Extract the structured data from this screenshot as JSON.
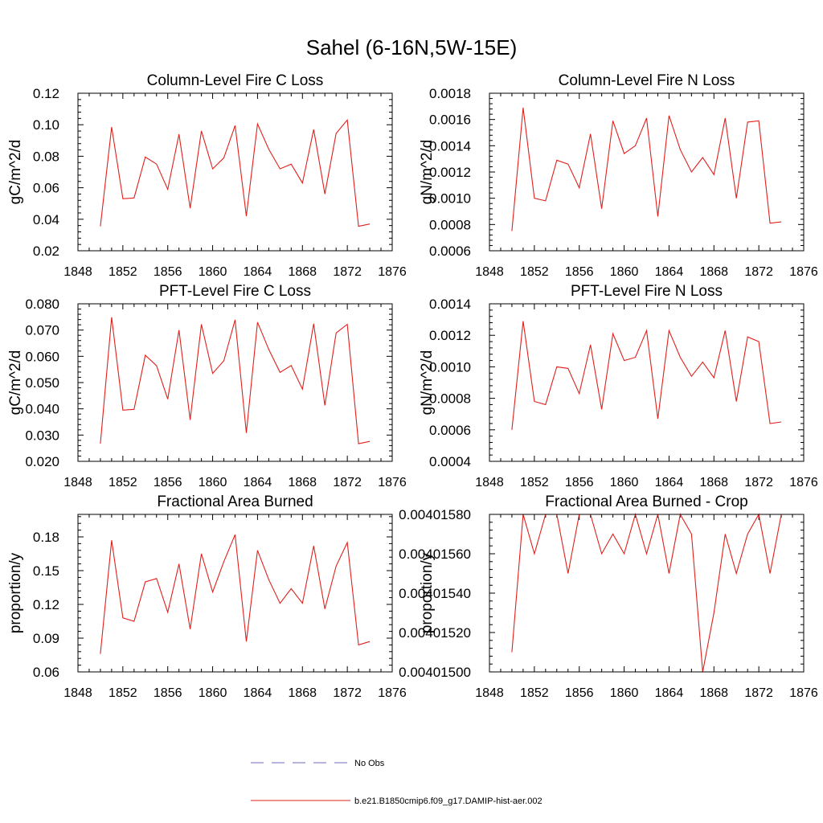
{
  "figure": {
    "title": "Sahel (6-16N,5W-15E)",
    "legend": [
      {
        "label": "No Obs",
        "style": "dashed",
        "color": "#6a6ab8"
      },
      {
        "label": "b.e21.B1850cmip6.f09_g17.DAMIP-hist-aer.002",
        "style": "solid",
        "color": "#e0201b"
      }
    ]
  },
  "chart_data": [
    {
      "type": "line",
      "title": "Column-Level Fire C Loss",
      "ylabel": "gC/m^2/d",
      "xlim": [
        1848,
        1876
      ],
      "ylim": [
        0.02,
        0.12
      ],
      "xticks": [
        "1848",
        "1852",
        "1856",
        "1860",
        "1864",
        "1868",
        "1872",
        "1876"
      ],
      "yticks": [
        "0.02",
        "0.04",
        "0.06",
        "0.08",
        "0.10",
        "0.12"
      ],
      "series": [
        {
          "color": "#e0201b",
          "x": [
            1850,
            1851,
            1852,
            1853,
            1854,
            1855,
            1856,
            1857,
            1858,
            1859,
            1860,
            1861,
            1862,
            1863,
            1864,
            1865,
            1866,
            1867,
            1868,
            1869,
            1870,
            1871,
            1872,
            1873,
            1874
          ],
          "values": [
            0.0355,
            0.0985,
            0.053,
            0.0535,
            0.0795,
            0.075,
            0.059,
            0.094,
            0.047,
            0.096,
            0.072,
            0.079,
            0.0995,
            0.042,
            0.1005,
            0.0845,
            0.072,
            0.075,
            0.063,
            0.097,
            0.056,
            0.0945,
            0.103,
            0.0355,
            0.037
          ]
        }
      ]
    },
    {
      "type": "line",
      "title": "Column-Level Fire N Loss",
      "ylabel": "gN/m^2/d",
      "xlim": [
        1848,
        1876
      ],
      "ylim": [
        0.0006,
        0.0018
      ],
      "xticks": [
        "1848",
        "1852",
        "1856",
        "1860",
        "1864",
        "1868",
        "1872",
        "1876"
      ],
      "yticks": [
        "0.0006",
        "0.0008",
        "0.0010",
        "0.0012",
        "0.0014",
        "0.0016",
        "0.0018"
      ],
      "series": [
        {
          "color": "#e0201b",
          "x": [
            1850,
            1851,
            1852,
            1853,
            1854,
            1855,
            1856,
            1857,
            1858,
            1859,
            1860,
            1861,
            1862,
            1863,
            1864,
            1865,
            1866,
            1867,
            1868,
            1869,
            1870,
            1871,
            1872,
            1873,
            1874
          ],
          "values": [
            0.00075,
            0.00169,
            0.001,
            0.00098,
            0.00129,
            0.00126,
            0.00108,
            0.00149,
            0.00092,
            0.00159,
            0.00134,
            0.0014,
            0.00161,
            0.00086,
            0.00163,
            0.00137,
            0.0012,
            0.00131,
            0.00118,
            0.00161,
            0.001,
            0.00158,
            0.00159,
            0.00081,
            0.00082
          ]
        }
      ]
    },
    {
      "type": "line",
      "title": "PFT-Level Fire C Loss",
      "ylabel": "gC/m^2/d",
      "xlim": [
        1848,
        1876
      ],
      "ylim": [
        0.02,
        0.08
      ],
      "xticks": [
        "1848",
        "1852",
        "1856",
        "1860",
        "1864",
        "1868",
        "1872",
        "1876"
      ],
      "yticks": [
        "0.020",
        "0.030",
        "0.040",
        "0.050",
        "0.060",
        "0.070",
        "0.080"
      ],
      "series": [
        {
          "color": "#e0201b",
          "x": [
            1850,
            1851,
            1852,
            1853,
            1854,
            1855,
            1856,
            1857,
            1858,
            1859,
            1860,
            1861,
            1862,
            1863,
            1864,
            1865,
            1866,
            1867,
            1868,
            1869,
            1870,
            1871,
            1872,
            1873,
            1874
          ],
          "values": [
            0.0267,
            0.0749,
            0.0395,
            0.0398,
            0.0604,
            0.0564,
            0.0437,
            0.07,
            0.0358,
            0.0722,
            0.0535,
            0.0583,
            0.0739,
            0.0308,
            0.073,
            0.0626,
            0.0539,
            0.0565,
            0.0475,
            0.0724,
            0.0413,
            0.0689,
            0.0722,
            0.0267,
            0.0276
          ]
        }
      ]
    },
    {
      "type": "line",
      "title": "PFT-Level Fire N Loss",
      "ylabel": "gN/m^2/d",
      "xlim": [
        1848,
        1876
      ],
      "ylim": [
        0.0004,
        0.0014
      ],
      "xticks": [
        "1848",
        "1852",
        "1856",
        "1860",
        "1864",
        "1868",
        "1872",
        "1876"
      ],
      "yticks": [
        "0.0004",
        "0.0006",
        "0.0008",
        "0.0010",
        "0.0012",
        "0.0014"
      ],
      "series": [
        {
          "color": "#e0201b",
          "x": [
            1850,
            1851,
            1852,
            1853,
            1854,
            1855,
            1856,
            1857,
            1858,
            1859,
            1860,
            1861,
            1862,
            1863,
            1864,
            1865,
            1866,
            1867,
            1868,
            1869,
            1870,
            1871,
            1872,
            1873,
            1874
          ],
          "values": [
            0.0006,
            0.00129,
            0.00078,
            0.00076,
            0.001,
            0.00099,
            0.00083,
            0.00114,
            0.00073,
            0.00121,
            0.00104,
            0.00106,
            0.00123,
            0.00067,
            0.00123,
            0.00106,
            0.00094,
            0.00103,
            0.00093,
            0.00123,
            0.00078,
            0.00119,
            0.00116,
            0.00064,
            0.00065
          ]
        }
      ]
    },
    {
      "type": "line",
      "title": "Fractional Area Burned",
      "ylabel": "proportion/y",
      "xlim": [
        1848,
        1876
      ],
      "ylim": [
        0.06,
        0.2
      ],
      "xticks": [
        "1848",
        "1852",
        "1856",
        "1860",
        "1864",
        "1868",
        "1872",
        "1876"
      ],
      "yticks": [
        "0.06",
        "0.09",
        "0.12",
        "0.15",
        "0.18"
      ],
      "ytickvalues": [
        0.06,
        0.09,
        0.12,
        0.15,
        0.18
      ],
      "series": [
        {
          "color": "#e0201b",
          "x": [
            1850,
            1851,
            1852,
            1853,
            1854,
            1855,
            1856,
            1857,
            1858,
            1859,
            1860,
            1861,
            1862,
            1863,
            1864,
            1865,
            1866,
            1867,
            1868,
            1869,
            1870,
            1871,
            1872,
            1873,
            1874
          ],
          "values": [
            0.076,
            0.177,
            0.108,
            0.105,
            0.14,
            0.143,
            0.113,
            0.156,
            0.098,
            0.165,
            0.131,
            0.158,
            0.182,
            0.087,
            0.168,
            0.142,
            0.121,
            0.134,
            0.121,
            0.172,
            0.116,
            0.154,
            0.175,
            0.084,
            0.087
          ]
        }
      ]
    },
    {
      "type": "line",
      "title": "Fractional Area Burned - Crop",
      "ylabel": "proportion/y",
      "xlim": [
        1848,
        1876
      ],
      "ylim": [
        0.004015,
        0.0040158
      ],
      "xticks": [
        "1848",
        "1852",
        "1856",
        "1860",
        "1864",
        "1868",
        "1872",
        "1876"
      ],
      "yticks": [
        "0.00401500",
        "0.00401520",
        "0.00401540",
        "0.00401560",
        "0.00401580"
      ],
      "ytickvalues": [
        0.004015,
        0.0040152,
        0.0040154,
        0.0040156,
        0.0040158
      ],
      "series": [
        {
          "color": "#e0201b",
          "x": [
            1850,
            1851,
            1852,
            1853,
            1854,
            1855,
            1856,
            1857,
            1858,
            1859,
            1860,
            1861,
            1862,
            1863,
            1864,
            1865,
            1866,
            1867,
            1868,
            1869,
            1870,
            1871,
            1872,
            1873,
            1874
          ],
          "values": [
            0.0040151,
            0.0040158,
            0.0040156,
            0.0040158,
            0.0040158,
            0.0040155,
            0.0040158,
            0.0040158,
            0.0040156,
            0.0040157,
            0.0040156,
            0.0040158,
            0.0040156,
            0.0040158,
            0.0040155,
            0.0040158,
            0.0040157,
            0.004015,
            0.0040153,
            0.0040157,
            0.0040155,
            0.0040157,
            0.0040158,
            0.0040155,
            0.0040158
          ]
        }
      ]
    }
  ]
}
